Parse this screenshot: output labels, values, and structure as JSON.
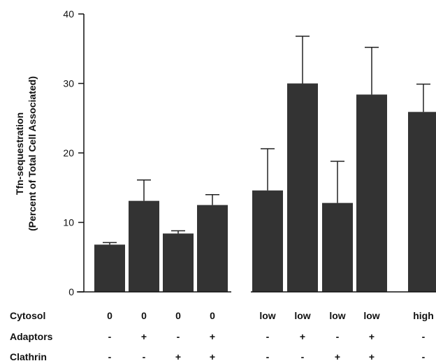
{
  "chart_data": {
    "type": "bar",
    "ylabel_line1": "Tfn-sequestration",
    "ylabel_line2": "(Percent of Total Cell Associated)",
    "ylim": [
      0,
      40
    ],
    "yticks": [
      "0",
      "10",
      "20",
      "30",
      "40"
    ],
    "values": [
      6.8,
      13.1,
      8.4,
      12.5,
      14.6,
      30.0,
      12.8,
      28.4,
      25.9
    ],
    "errors": [
      0.3,
      3.0,
      0.4,
      1.5,
      6.0,
      6.8,
      6.0,
      6.8,
      4.0
    ],
    "bar_color": "#333333",
    "rows": [
      {
        "label": "Cytosol",
        "values": [
          "0",
          "0",
          "0",
          "0",
          "low",
          "low",
          "low",
          "low",
          "high"
        ]
      },
      {
        "label": "Adaptors",
        "values": [
          "-",
          "+",
          "-",
          "+",
          "-",
          "+",
          "-",
          "+",
          "-"
        ]
      },
      {
        "label": "Clathrin",
        "values": [
          "-",
          "-",
          "+",
          "+",
          "-",
          "-",
          "+",
          "+",
          "-"
        ]
      }
    ]
  }
}
